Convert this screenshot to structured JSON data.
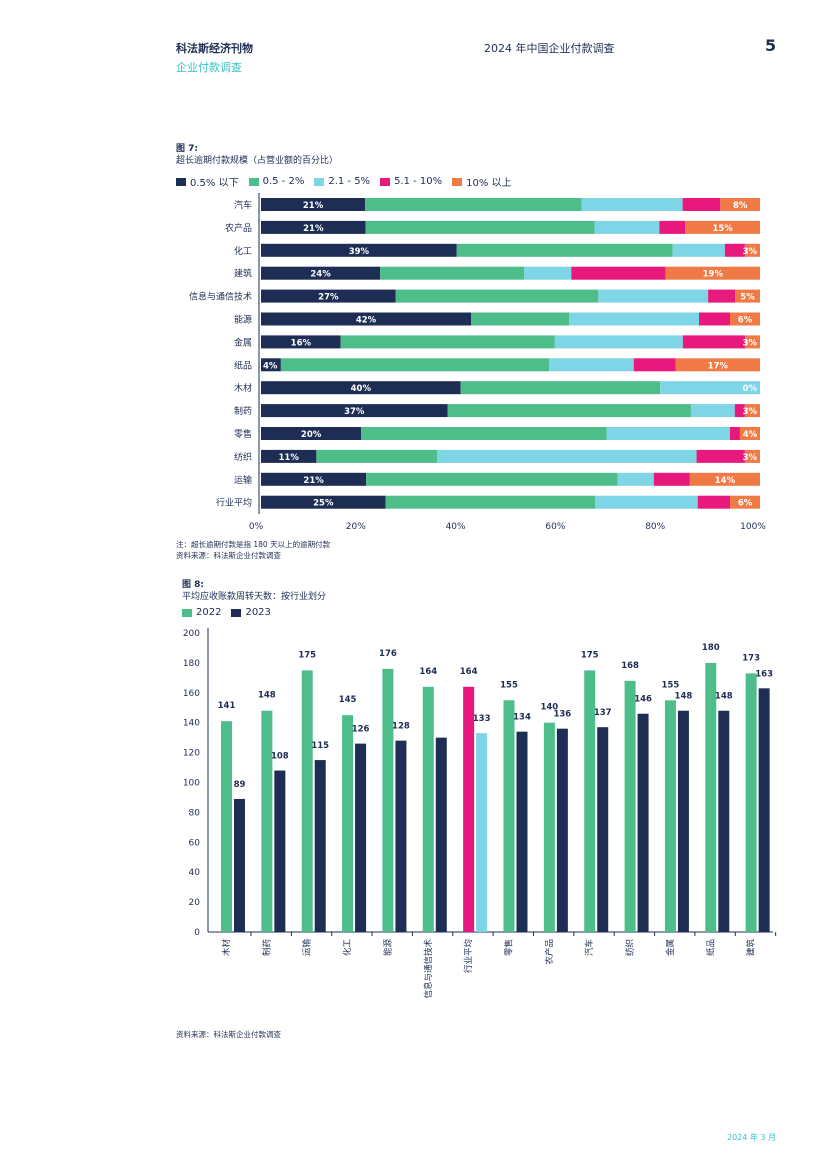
{
  "header": {
    "publication": "科法斯经济刊物",
    "subtitle": "企业付款调查",
    "report_title": "2024 年中国企业付款调查",
    "page_number": "5"
  },
  "figure7": {
    "label": "图 7:",
    "caption": "超长逾期付款规模（占营业额的百分比）",
    "note": "注：超长逾期付款是指 180 天以上的逾期付款",
    "source": "资料来源：科法斯企业付款调查"
  },
  "figure8": {
    "label": "图 8:",
    "caption": "平均应收账款周转天数：按行业划分",
    "source": "资料来源：科法斯企业付款调查"
  },
  "footer": {
    "date": "2024 年 3 月"
  },
  "colors": {
    "navy": "#1e2d54",
    "green": "#4dbe8a",
    "lightblue": "#7dd5e6",
    "magenta": "#e8197d",
    "orange": "#ef7a45"
  },
  "chart_data": [
    {
      "type": "bar",
      "orientation": "horizontal",
      "stacked": true,
      "categories": [
        "汽车",
        "农产品",
        "化工",
        "建筑",
        "信息与通信技术",
        "能源",
        "金属",
        "纸品",
        "木材",
        "制药",
        "零售",
        "纺织",
        "运输",
        "行业平均"
      ],
      "series": [
        {
          "name": "0.5% 以下",
          "color": "#1e2d54",
          "values": [
            21,
            21,
            39,
            24,
            27,
            42,
            16,
            4,
            40,
            37,
            20,
            11,
            21,
            25
          ]
        },
        {
          "name": "0.5 - 2%",
          "color": "#4dbe8a",
          "values": [
            43.6,
            46,
            43,
            29,
            40.6,
            19.6,
            43,
            54,
            40,
            48.3,
            49,
            24,
            50.2,
            42
          ]
        },
        {
          "name": "2.1 - 5%",
          "color": "#7dd5e6",
          "values": [
            20.4,
            13,
            10.4,
            9.5,
            22,
            26,
            25.7,
            17,
            20,
            8.7,
            24.6,
            51.5,
            7.2,
            20.6
          ]
        },
        {
          "name": "5.1 - 10%",
          "color": "#e8197d",
          "values": [
            7.6,
            5.2,
            4,
            19,
            5.4,
            6.2,
            12.5,
            8.4,
            0,
            2,
            2,
            9.6,
            7.2,
            6.5
          ]
        },
        {
          "name": "10% 以上",
          "color": "#ef7a45",
          "values": [
            8,
            15,
            3,
            19,
            5,
            6,
            3,
            17,
            0,
            3,
            4,
            3,
            14,
            6
          ]
        }
      ],
      "labeled_values": {
        "first": [
          21,
          21,
          39,
          24,
          27,
          42,
          16,
          4,
          40,
          37,
          20,
          11,
          21,
          25
        ],
        "last": [
          "8%",
          "15%",
          "3%",
          "19%",
          "5%",
          "6%",
          "3%",
          "17%",
          "0%",
          "3%",
          "4%",
          "3%",
          "14%",
          "6%"
        ]
      },
      "xlim": [
        0,
        100
      ],
      "xticks": [
        "0%",
        "20%",
        "40%",
        "60%",
        "80%",
        "100%"
      ],
      "legend": "top-left"
    },
    {
      "type": "bar",
      "categories": [
        "木材",
        "制药",
        "运输",
        "化工",
        "能源",
        "信息与通信技术",
        "行业平均",
        "零售",
        "农产品",
        "汽车",
        "纺织",
        "金属",
        "纸品",
        "建筑"
      ],
      "series": [
        {
          "name": "2022",
          "color": "#4dbe8a",
          "values": [
            141,
            148,
            175,
            145,
            176,
            164,
            164,
            155,
            140,
            175,
            168,
            155,
            180,
            173
          ]
        },
        {
          "name": "2023",
          "color": "#1e2d54",
          "values": [
            89,
            108,
            115,
            126,
            128,
            null,
            133,
            134,
            136,
            137,
            146,
            148,
            148,
            163
          ]
        }
      ],
      "shown_2023_bar": [
        89,
        108,
        115,
        126,
        128,
        130,
        133,
        134,
        136,
        137,
        146,
        148,
        148,
        163
      ],
      "highlight_category": "行业平均",
      "highlight_colors": {
        "2022": "#e8197d",
        "2023": "#7dd5e6"
      },
      "ylim": [
        0,
        200
      ],
      "yticks": [
        0,
        20,
        40,
        60,
        80,
        100,
        120,
        140,
        160,
        180,
        200
      ],
      "legend": "top-left"
    }
  ]
}
